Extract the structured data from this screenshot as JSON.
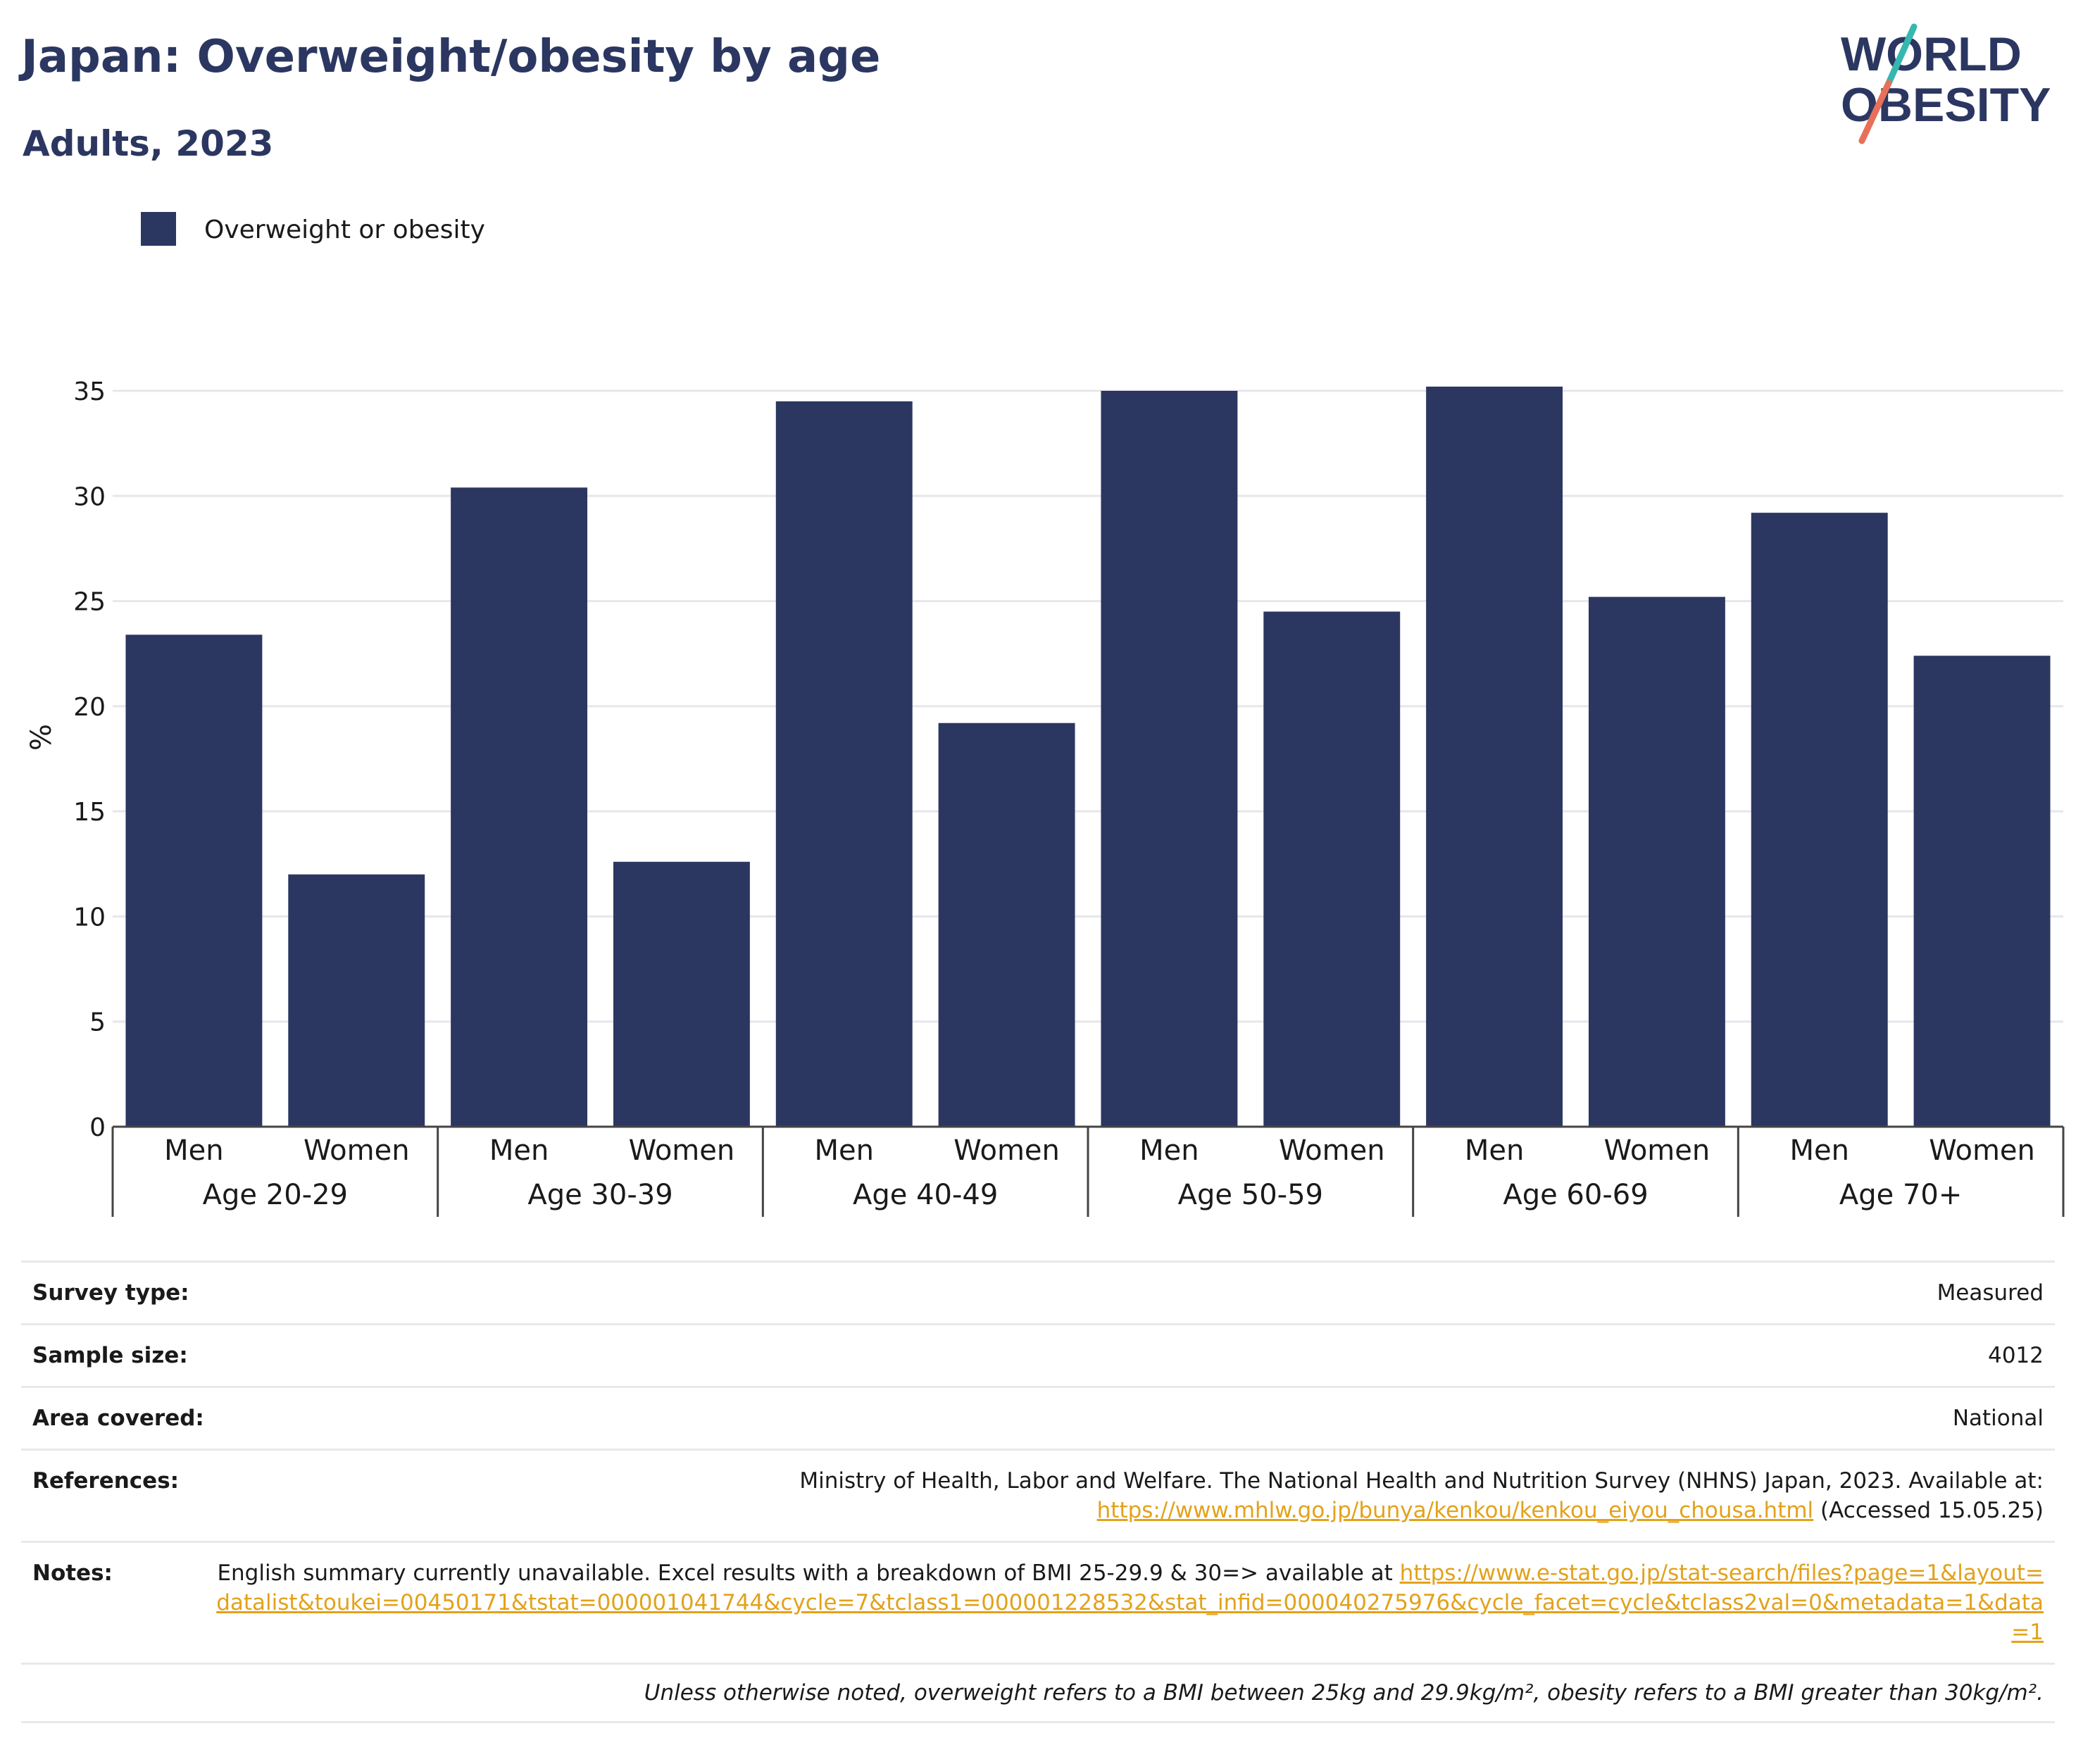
{
  "header": {
    "title": "Japan: Overweight/obesity by age",
    "subtitle": "Adults, 2023",
    "logo_line1": "WORLD",
    "logo_line2": "OBESITY"
  },
  "colors": {
    "bar": "#2b3761",
    "title": "#2b3761",
    "link": "#e2a21b",
    "logo_teal": "#36b7b0",
    "logo_coral": "#e8705a"
  },
  "chart_data": {
    "type": "bar",
    "title": "Japan: Overweight/obesity by age",
    "subtitle": "Adults, 2023",
    "ylabel": "%",
    "xlabel": "",
    "ylim": [
      0,
      35
    ],
    "yticks": [
      0,
      5,
      10,
      15,
      20,
      25,
      30,
      35
    ],
    "grid": true,
    "legend_position": "top-left",
    "groups": [
      "Age 20-29",
      "Age 30-39",
      "Age 40-49",
      "Age 50-59",
      "Age 60-69",
      "Age 70+"
    ],
    "subcategories": [
      "Men",
      "Women"
    ],
    "series": [
      {
        "name": "Overweight or obesity",
        "values": [
          23.4,
          12.0,
          30.4,
          12.6,
          34.5,
          19.2,
          35.0,
          24.5,
          35.2,
          25.2,
          29.2,
          22.4
        ]
      }
    ]
  },
  "info": {
    "survey_type_label": "Survey type:",
    "survey_type_value": "Measured",
    "sample_size_label": "Sample size:",
    "sample_size_value": "4012",
    "area_label": "Area covered:",
    "area_value": "National",
    "references_label": "References:",
    "references_text": "Ministry of Health, Labor and Welfare. The National Health and Nutrition Survey (NHNS) Japan, 2023. Available at:",
    "references_link": "https://www.mhlw.go.jp/bunya/kenkou/kenkou_eiyou_chousa.html",
    "references_suffix": "(Accessed 15.05.25)",
    "notes_label": "Notes:",
    "notes_text": "English summary currently unavailable. Excel results with a breakdown of BMI 25-29.9 & 30=> available at",
    "notes_link": "https://www.e-stat.go.jp/stat-search/files?page=1&layout=datalist&toukei=00450171&tstat=000001041744&cycle=7&tclass1=000001228532&stat_infid=000040275976&cycle_facet=cycle&tclass2val=0&metadata=1&data=1",
    "footnote": "Unless otherwise noted, overweight refers to a BMI between 25kg and 29.9kg/m², obesity refers to a BMI greater than 30kg/m²."
  }
}
